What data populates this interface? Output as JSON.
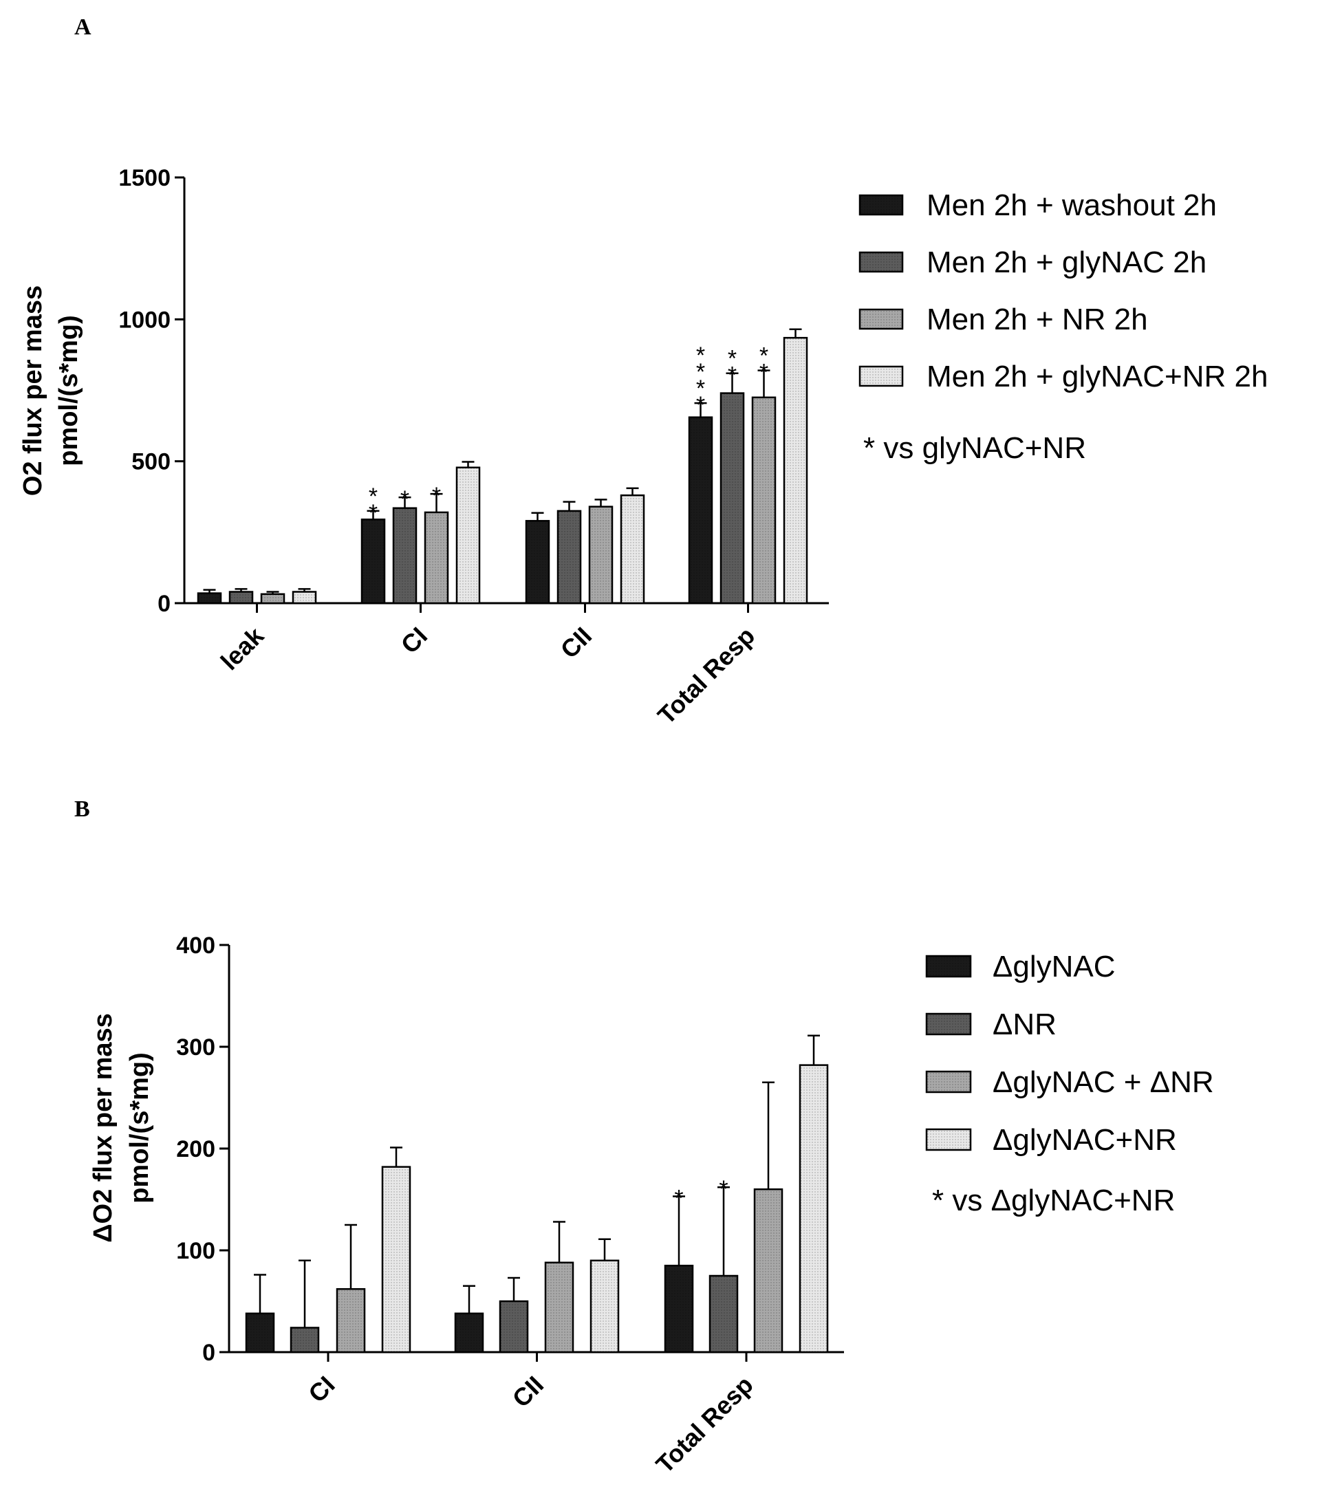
{
  "chart_data": [
    {
      "panel": "A",
      "type": "bar",
      "categories": [
        "leak",
        "CI",
        "CII",
        "Total Resp"
      ],
      "ylabel_lines": [
        "O2 flux per mass",
        "pmol/(s*mg)"
      ],
      "ylim": [
        0,
        1500
      ],
      "yticks": [
        "0",
        "500",
        "1000",
        "1500"
      ],
      "note": "* vs glyNAC+NR",
      "series": [
        {
          "name": "Men 2h + washout 2h",
          "color": "#1a1a1a",
          "values": [
            35,
            295,
            290,
            655
          ],
          "errors": [
            12,
            30,
            28,
            50
          ],
          "stars": [
            0,
            2,
            0,
            4
          ]
        },
        {
          "name": "Men 2h + glyNAC 2h",
          "color": "#5c5c5c",
          "values": [
            40,
            335,
            325,
            740
          ],
          "errors": [
            10,
            38,
            32,
            70
          ],
          "stars": [
            0,
            1,
            0,
            2
          ]
        },
        {
          "name": "Men 2h + NR 2h",
          "color": "#a8a8a8",
          "values": [
            32,
            320,
            340,
            725
          ],
          "errors": [
            8,
            65,
            25,
            95
          ],
          "stars": [
            0,
            1,
            0,
            2
          ]
        },
        {
          "name": "Men 2h + glyNAC+NR 2h",
          "color": "#e8e8e8",
          "values": [
            40,
            478,
            380,
            935
          ],
          "errors": [
            10,
            20,
            25,
            30
          ],
          "stars": [
            0,
            0,
            0,
            0
          ]
        }
      ]
    },
    {
      "panel": "B",
      "type": "bar",
      "categories": [
        "CI",
        "CII",
        "Total Resp"
      ],
      "ylabel_lines": [
        "ΔO2 flux per mass",
        "pmol/(s*mg)"
      ],
      "ylim": [
        0,
        400
      ],
      "yticks": [
        "0",
        "100",
        "200",
        "300",
        "400"
      ],
      "note": "* vs ΔglyNAC+NR",
      "series": [
        {
          "name": "ΔglyNAC",
          "color": "#1a1a1a",
          "values": [
            38,
            38,
            85
          ],
          "errors": [
            38,
            27,
            68
          ],
          "stars": [
            0,
            0,
            1
          ]
        },
        {
          "name": "ΔNR",
          "color": "#5c5c5c",
          "values": [
            24,
            50,
            75
          ],
          "errors": [
            66,
            23,
            87
          ],
          "stars": [
            0,
            0,
            1
          ]
        },
        {
          "name": "ΔglyNAC + ΔNR",
          "color": "#a8a8a8",
          "values": [
            62,
            88,
            160
          ],
          "errors": [
            63,
            40,
            105
          ],
          "stars": [
            0,
            0,
            0
          ]
        },
        {
          "name": "ΔglyNAC+NR",
          "color": "#e8e8e8",
          "values": [
            182,
            90,
            282
          ],
          "errors": [
            19,
            21,
            29
          ],
          "stars": [
            0,
            0,
            0
          ]
        }
      ]
    }
  ],
  "panel_labels": {
    "a": "A",
    "b": "B"
  }
}
